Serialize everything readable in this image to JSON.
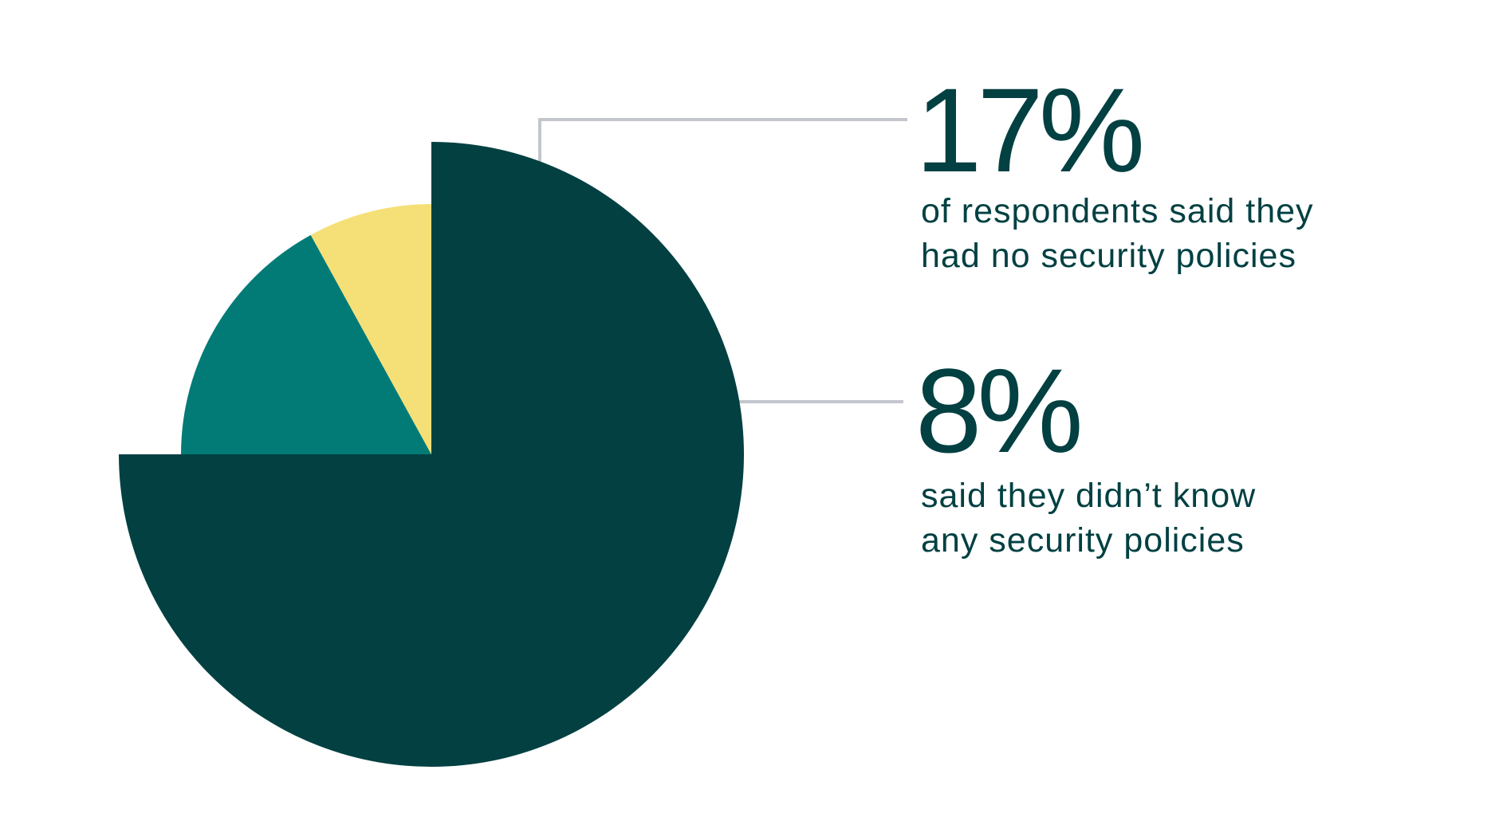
{
  "chart_data": {
    "type": "pie",
    "slices": [
      {
        "label": "",
        "value": 75,
        "color": "#024042"
      },
      {
        "label": "of respondents said they had no security policies",
        "value": 17,
        "color": "#027B77"
      },
      {
        "label": "said they didn’t know any security policies",
        "value": 8,
        "color": "#F5E077"
      }
    ],
    "start": "12 o'clock",
    "direction": "clockwise",
    "exploded_slice": 0,
    "legend": "none"
  },
  "callouts": [
    {
      "value_text": "17%",
      "line1": "of respondents said they",
      "line2": "had no security policies"
    },
    {
      "value_text": "8%",
      "line1": "said they didn’t know",
      "line2": "any security policies"
    }
  ],
  "colors": {
    "text": "#024042",
    "leader": "#C3C6CC",
    "background": "#FFFFFF"
  }
}
